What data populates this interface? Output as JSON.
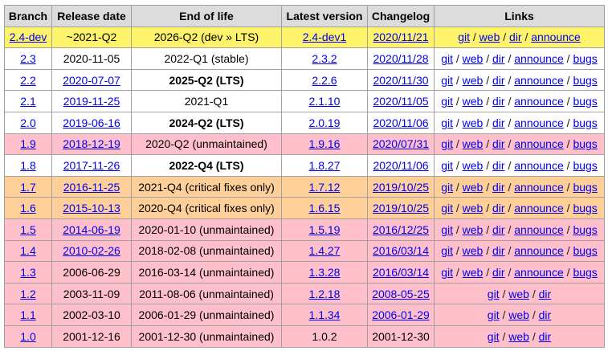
{
  "table": {
    "header": [
      "Branch",
      "Release date",
      "End of life",
      "Latest version",
      "Changelog",
      "Links"
    ],
    "separator": "/",
    "rows": [
      {
        "color": "#fff36b",
        "cells": [
          {
            "text": "2.4-dev",
            "link": true
          },
          {
            "text": "~2021-Q2",
            "link": false
          },
          {
            "text": "2026-Q2 (dev » LTS)",
            "link": false
          },
          {
            "text": "2.4-dev1",
            "link": true
          },
          {
            "text": "2020/11/21",
            "link": true
          }
        ],
        "links": [
          "git",
          "web",
          "dir",
          "announce"
        ]
      },
      {
        "color": "#ffffff",
        "cells": [
          {
            "text": "2.3",
            "link": true
          },
          {
            "text": "2020-11-05",
            "link": false
          },
          {
            "text": "2022-Q1 (stable)",
            "link": false
          },
          {
            "text": "2.3.2",
            "link": true
          },
          {
            "text": "2020/11/28",
            "link": true
          }
        ],
        "links": [
          "git",
          "web",
          "dir",
          "announce",
          "bugs"
        ]
      },
      {
        "color": "#ffffff",
        "cells": [
          {
            "text": "2.2",
            "link": true
          },
          {
            "text": "2020-07-07",
            "link": true
          },
          {
            "text": "2025-Q2 (LTS)",
            "link": false,
            "bold": true
          },
          {
            "text": "2.2.6",
            "link": true
          },
          {
            "text": "2020/11/30",
            "link": true
          }
        ],
        "links": [
          "git",
          "web",
          "dir",
          "announce",
          "bugs"
        ]
      },
      {
        "color": "#ffffff",
        "cells": [
          {
            "text": "2.1",
            "link": true
          },
          {
            "text": "2019-11-25",
            "link": true
          },
          {
            "text": "2021-Q1",
            "link": false
          },
          {
            "text": "2.1.10",
            "link": true
          },
          {
            "text": "2020/11/05",
            "link": true
          }
        ],
        "links": [
          "git",
          "web",
          "dir",
          "announce",
          "bugs"
        ]
      },
      {
        "color": "#ffffff",
        "cells": [
          {
            "text": "2.0",
            "link": true
          },
          {
            "text": "2019-06-16",
            "link": true
          },
          {
            "text": "2024-Q2 (LTS)",
            "link": false,
            "bold": true
          },
          {
            "text": "2.0.19",
            "link": true
          },
          {
            "text": "2020/11/06",
            "link": true
          }
        ],
        "links": [
          "git",
          "web",
          "dir",
          "announce",
          "bugs"
        ]
      },
      {
        "color": "#ffc0cb",
        "cells": [
          {
            "text": "1.9",
            "link": true
          },
          {
            "text": "2018-12-19",
            "link": true
          },
          {
            "text": "2020-Q2 (unmaintained)",
            "link": false
          },
          {
            "text": "1.9.16",
            "link": true
          },
          {
            "text": "2020/07/31",
            "link": true
          }
        ],
        "links": [
          "git",
          "web",
          "dir",
          "announce",
          "bugs"
        ]
      },
      {
        "color": "#ffffff",
        "cells": [
          {
            "text": "1.8",
            "link": true
          },
          {
            "text": "2017-11-26",
            "link": true
          },
          {
            "text": "2022-Q4 (LTS)",
            "link": false,
            "bold": true
          },
          {
            "text": "1.8.27",
            "link": true
          },
          {
            "text": "2020/11/06",
            "link": true
          }
        ],
        "links": [
          "git",
          "web",
          "dir",
          "announce",
          "bugs"
        ]
      },
      {
        "color": "#ffcf99",
        "cells": [
          {
            "text": "1.7",
            "link": true
          },
          {
            "text": "2016-11-25",
            "link": true
          },
          {
            "text": "2021-Q4 (critical fixes only)",
            "link": false
          },
          {
            "text": "1.7.12",
            "link": true
          },
          {
            "text": "2019/10/25",
            "link": true
          }
        ],
        "links": [
          "git",
          "web",
          "dir",
          "announce",
          "bugs"
        ]
      },
      {
        "color": "#ffcf99",
        "cells": [
          {
            "text": "1.6",
            "link": true
          },
          {
            "text": "2015-10-13",
            "link": true
          },
          {
            "text": "2020-Q4 (critical fixes only)",
            "link": false
          },
          {
            "text": "1.6.15",
            "link": true
          },
          {
            "text": "2019/10/25",
            "link": true
          }
        ],
        "links": [
          "git",
          "web",
          "dir",
          "announce",
          "bugs"
        ]
      },
      {
        "color": "#ffc0cb",
        "cells": [
          {
            "text": "1.5",
            "link": true
          },
          {
            "text": "2014-06-19",
            "link": true
          },
          {
            "text": "2020-01-10 (unmaintained)",
            "link": false
          },
          {
            "text": "1.5.19",
            "link": true
          },
          {
            "text": "2016/12/25",
            "link": true
          }
        ],
        "links": [
          "git",
          "web",
          "dir",
          "announce",
          "bugs"
        ]
      },
      {
        "color": "#ffc0cb",
        "cells": [
          {
            "text": "1.4",
            "link": true
          },
          {
            "text": "2010-02-26",
            "link": true
          },
          {
            "text": "2018-02-08 (unmaintained)",
            "link": false
          },
          {
            "text": "1.4.27",
            "link": true
          },
          {
            "text": "2016/03/14",
            "link": true
          }
        ],
        "links": [
          "git",
          "web",
          "dir",
          "announce",
          "bugs"
        ]
      },
      {
        "color": "#ffc0cb",
        "cells": [
          {
            "text": "1.3",
            "link": true
          },
          {
            "text": "2006-06-29",
            "link": false
          },
          {
            "text": "2016-03-14 (unmaintained)",
            "link": false
          },
          {
            "text": "1.3.28",
            "link": true
          },
          {
            "text": "2016/03/14",
            "link": true
          }
        ],
        "links": [
          "git",
          "web",
          "dir",
          "announce",
          "bugs"
        ]
      },
      {
        "color": "#ffc0cb",
        "cells": [
          {
            "text": "1.2",
            "link": true
          },
          {
            "text": "2003-11-09",
            "link": false
          },
          {
            "text": "2011-08-06 (unmaintained)",
            "link": false
          },
          {
            "text": "1.2.18",
            "link": true
          },
          {
            "text": "2008-05-25",
            "link": true
          }
        ],
        "links": [
          "git",
          "web",
          "dir"
        ]
      },
      {
        "color": "#ffc0cb",
        "cells": [
          {
            "text": "1.1",
            "link": true
          },
          {
            "text": "2002-03-10",
            "link": false
          },
          {
            "text": "2006-01-29 (unmaintained)",
            "link": false
          },
          {
            "text": "1.1.34",
            "link": true
          },
          {
            "text": "2006-01-29",
            "link": true
          }
        ],
        "links": [
          "git",
          "web",
          "dir"
        ]
      },
      {
        "color": "#ffc0cb",
        "cells": [
          {
            "text": "1.0",
            "link": true
          },
          {
            "text": "2001-12-16",
            "link": false
          },
          {
            "text": "2001-12-30 (unmaintained)",
            "link": false
          },
          {
            "text": "1.0.2",
            "link": false
          },
          {
            "text": "2001-12-30",
            "link": false
          }
        ],
        "links": [
          "git",
          "web",
          "dir"
        ]
      }
    ]
  }
}
